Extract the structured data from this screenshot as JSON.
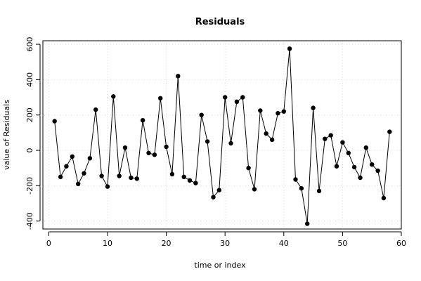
{
  "chart_data": {
    "type": "line",
    "title": "Residuals",
    "xlabel": "time or index",
    "ylabel": "value of Residuals",
    "xlim": [
      -1,
      60
    ],
    "ylim": [
      -445,
      620
    ],
    "x_ticks": [
      0,
      10,
      20,
      30,
      40,
      50,
      60
    ],
    "y_ticks": [
      -400,
      -200,
      0,
      200,
      400,
      600
    ],
    "grid": true,
    "marker": "filled-circle",
    "colors": {
      "line": "#000000",
      "grid": "#d9d9d9",
      "axis": "#000000"
    },
    "series": [
      {
        "x": [
          1,
          2,
          3,
          4,
          5,
          6,
          7,
          8,
          9,
          10,
          11,
          12,
          13,
          14,
          15,
          16,
          17,
          18,
          19,
          20,
          21,
          22,
          23,
          24,
          25,
          26,
          27,
          28,
          29,
          30,
          31,
          32,
          33,
          34,
          35,
          36,
          37,
          38,
          39,
          40,
          41,
          42,
          43,
          44,
          45,
          46,
          47,
          48,
          49,
          50,
          51,
          52,
          53,
          54,
          55,
          56,
          57,
          58
        ],
        "values": [
          165,
          -150,
          -90,
          -35,
          -190,
          -130,
          -45,
          230,
          -145,
          -205,
          305,
          -145,
          15,
          -155,
          -160,
          170,
          -15,
          -25,
          295,
          20,
          -135,
          420,
          -150,
          -170,
          -185,
          200,
          50,
          -265,
          -225,
          300,
          40,
          275,
          300,
          -100,
          -220,
          225,
          95,
          60,
          210,
          220,
          575,
          -165,
          -215,
          -415,
          240,
          -230,
          65,
          85,
          -90,
          45,
          -15,
          -95,
          -155,
          15,
          -80,
          -115,
          -270,
          105
        ]
      }
    ]
  }
}
